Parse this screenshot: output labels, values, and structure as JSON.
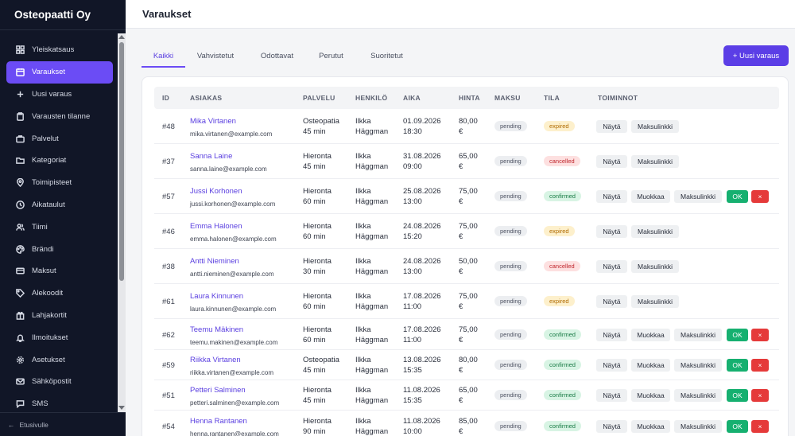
{
  "sidebar": {
    "brand": "Osteopaatti Oy",
    "items": [
      {
        "label": "Yleiskatsaus",
        "icon": "grid-icon"
      },
      {
        "label": "Varaukset",
        "icon": "calendar-icon",
        "active": true
      },
      {
        "label": "Uusi varaus",
        "icon": "plus-icon"
      },
      {
        "label": "Varausten tilanne",
        "icon": "clipboard-icon"
      },
      {
        "label": "Palvelut",
        "icon": "briefcase-icon"
      },
      {
        "label": "Kategoriat",
        "icon": "folder-icon"
      },
      {
        "label": "Toimipisteet",
        "icon": "map-pin-icon"
      },
      {
        "label": "Aikataulut",
        "icon": "clock-icon"
      },
      {
        "label": "Tiimi",
        "icon": "users-icon"
      },
      {
        "label": "Brändi",
        "icon": "palette-icon"
      },
      {
        "label": "Maksut",
        "icon": "credit-card-icon"
      },
      {
        "label": "Alekoodit",
        "icon": "tag-icon"
      },
      {
        "label": "Lahjakortit",
        "icon": "gift-icon"
      },
      {
        "label": "Ilmoitukset",
        "icon": "bell-icon"
      },
      {
        "label": "Asetukset",
        "icon": "gear-icon"
      },
      {
        "label": "Sähköpostit",
        "icon": "mail-icon"
      },
      {
        "label": "SMS",
        "icon": "chat-icon"
      }
    ],
    "footer": "Etusivulle"
  },
  "header": {
    "title": "Varaukset"
  },
  "tabs": [
    "Kaikki",
    "Vahvistetut",
    "Odottavat",
    "Perutut",
    "Suoritetut"
  ],
  "new_button": "+ Uusi varaus",
  "table": {
    "columns": [
      "ID",
      "ASIAKAS",
      "PALVELU",
      "HENKILÖ",
      "AIKA",
      "HINTA",
      "MAKSU",
      "TILA",
      "TOIMINNOT"
    ],
    "action_labels": {
      "view": "Näytä",
      "edit": "Muokkaa",
      "paylink": "Maksulinkki",
      "ok": "OK",
      "cancel": "×"
    },
    "rows": [
      {
        "id": "#48",
        "name": "Mika Virtanen",
        "email": "mika.virtanen@example.com",
        "service": "Osteopatia",
        "duration": "45 min",
        "person1": "Ilkka",
        "person2": "Häggman",
        "date": "01.09.2026",
        "time": "18:30",
        "price": "80,00",
        "cur": "€",
        "pay": "pending",
        "status": "expired"
      },
      {
        "id": "#37",
        "name": "Sanna Laine",
        "email": "sanna.laine@example.com",
        "service": "Hieronta",
        "duration": "45 min",
        "person1": "Ilkka",
        "person2": "Häggman",
        "date": "31.08.2026",
        "time": "09:00",
        "price": "65,00",
        "cur": "€",
        "pay": "pending",
        "status": "cancelled"
      },
      {
        "id": "#57",
        "name": "Jussi Korhonen",
        "email": "jussi.korhonen@example.com",
        "service": "Hieronta",
        "duration": "60 min",
        "person1": "Ilkka",
        "person2": "Häggman",
        "date": "25.08.2026",
        "time": "13:00",
        "price": "75,00",
        "cur": "€",
        "pay": "pending",
        "status": "confirmed"
      },
      {
        "id": "#46",
        "name": "Emma Halonen",
        "email": "emma.halonen@example.com",
        "service": "Hieronta",
        "duration": "60 min",
        "person1": "Ilkka",
        "person2": "Häggman",
        "date": "24.08.2026",
        "time": "15:20",
        "price": "75,00",
        "cur": "€",
        "pay": "pending",
        "status": "expired"
      },
      {
        "id": "#38",
        "name": "Antti Nieminen",
        "email": "antti.nieminen@example.com",
        "service": "Hieronta",
        "duration": "30 min",
        "person1": "Ilkka",
        "person2": "Häggman",
        "date": "24.08.2026",
        "time": "13:00",
        "price": "50,00",
        "cur": "€",
        "pay": "pending",
        "status": "cancelled"
      },
      {
        "id": "#61",
        "name": "Laura Kinnunen",
        "email": "laura.kinnunen@example.com",
        "service": "Hieronta",
        "duration": "60 min",
        "person1": "Ilkka",
        "person2": "Häggman",
        "date": "17.08.2026",
        "time": "11:00",
        "price": "75,00",
        "cur": "€",
        "pay": "pending",
        "status": "expired"
      },
      {
        "id": "#62",
        "name": "Teemu Mäkinen",
        "email": "teemu.makinen@example.com",
        "service": "Hieronta",
        "duration": "60 min",
        "person1": "Ilkka",
        "person2": "Häggman",
        "date": "17.08.2026",
        "time": "11:00",
        "price": "75,00",
        "cur": "€",
        "pay": "pending",
        "status": "confirmed"
      },
      {
        "id": "#59",
        "name": "Riikka Virtanen",
        "email": "riikka.virtanen@example.com",
        "service": "Osteopatia",
        "duration": "45 min",
        "person1": "Ilkka",
        "person2": "Häggman",
        "date": "13.08.2026",
        "time": "15:35",
        "price": "80,00",
        "cur": "€",
        "pay": "pending",
        "status": "confirmed"
      },
      {
        "id": "#51",
        "name": "Petteri Salminen",
        "email": "petteri.salminen@example.com",
        "service": "Hieronta",
        "duration": "45 min",
        "person1": "Ilkka",
        "person2": "Häggman",
        "date": "11.08.2026",
        "time": "15:35",
        "price": "65,00",
        "cur": "€",
        "pay": "pending",
        "status": "confirmed"
      },
      {
        "id": "#54",
        "name": "Henna Rantanen",
        "email": "henna.rantanen@example.com",
        "service": "Hieronta",
        "duration": "90 min",
        "person1": "Ilkka",
        "person2": "Häggman",
        "date": "11.08.2026",
        "time": "10:00",
        "price": "85,00",
        "cur": "€",
        "pay": "pending",
        "status": "confirmed"
      }
    ]
  },
  "colors": {
    "accent": "#6b4cf5",
    "sidebar_bg": "#111627",
    "ok": "#16b070",
    "danger": "#e53a3a"
  }
}
